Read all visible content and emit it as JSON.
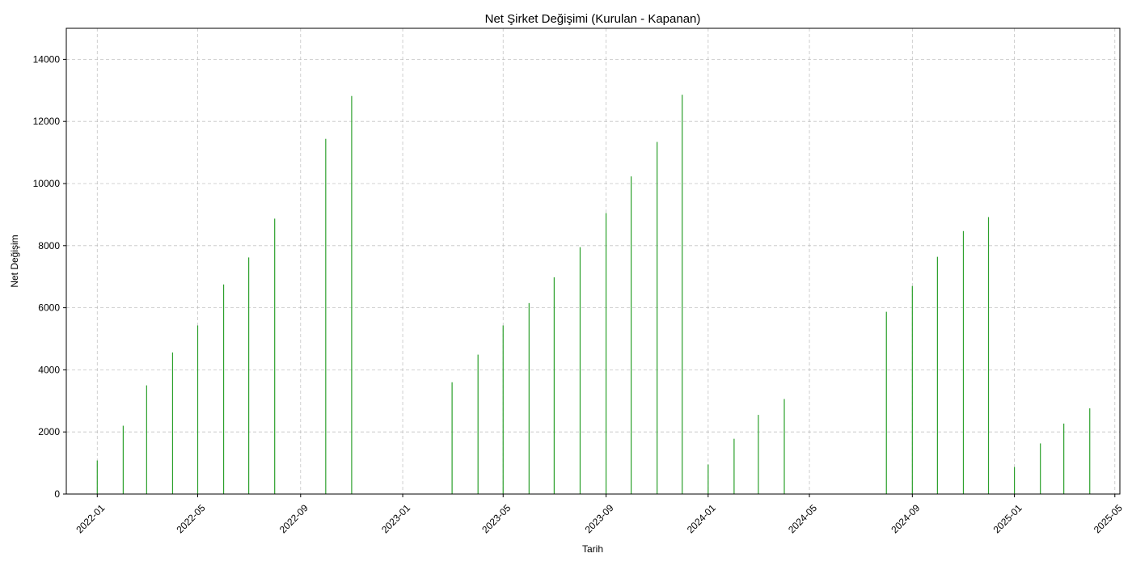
{
  "chart_data": {
    "type": "bar",
    "title": "Net Şirket Değişimi (Kurulan - Kapanan)",
    "xlabel": "Tarih",
    "ylabel": "Net Değişim",
    "ylim": [
      0,
      15000
    ],
    "y_ticks": [
      0,
      2000,
      4000,
      6000,
      8000,
      10000,
      12000,
      14000
    ],
    "x_range": [
      "2021-11-25",
      "2025-05-07"
    ],
    "x_ticks": [
      "2022-01",
      "2022-05",
      "2022-09",
      "2023-01",
      "2023-05",
      "2023-09",
      "2024-01",
      "2024-05",
      "2024-09",
      "2025-01",
      "2025-05"
    ],
    "grid": true,
    "bar_color": "#2ca02c",
    "x": [
      "2022-01-01",
      "2022-02-01",
      "2022-03-01",
      "2022-04-01",
      "2022-05-01",
      "2022-06-01",
      "2022-07-01",
      "2022-08-01",
      "2022-10-01",
      "2022-11-01",
      "2023-03-01",
      "2023-04-01",
      "2023-05-01",
      "2023-06-01",
      "2023-07-01",
      "2023-08-01",
      "2023-09-01",
      "2023-10-01",
      "2023-11-01",
      "2023-12-01",
      "2024-01-01",
      "2024-02-01",
      "2024-03-01",
      "2024-04-01",
      "2024-08-01",
      "2024-09-01",
      "2024-10-01",
      "2024-11-01",
      "2024-12-01",
      "2025-01-01",
      "2025-02-01",
      "2025-03-01",
      "2025-04-01"
    ],
    "values": [
      1080,
      2200,
      3500,
      4560,
      5430,
      6750,
      7620,
      8870,
      11440,
      12820,
      3600,
      4490,
      5430,
      6150,
      6980,
      7950,
      9050,
      10230,
      11340,
      12860,
      950,
      1780,
      2550,
      3060,
      5870,
      6700,
      7640,
      8470,
      8920,
      870,
      1630,
      2270,
      2760
    ]
  }
}
